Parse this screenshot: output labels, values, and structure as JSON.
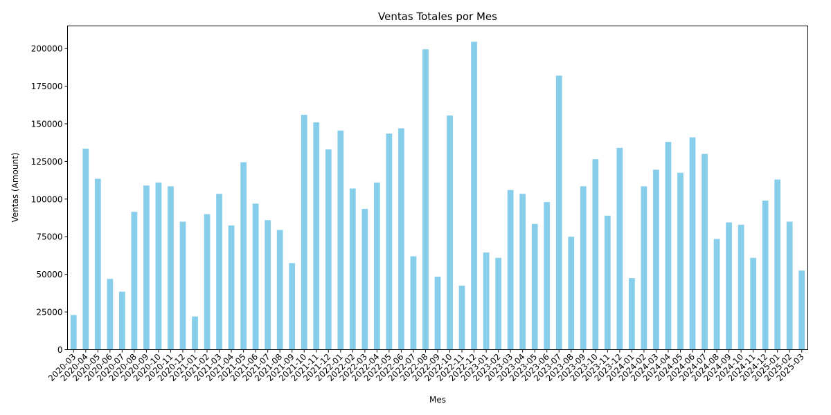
{
  "chart_data": {
    "type": "bar",
    "title": "Ventas Totales por Mes",
    "xlabel": "Mes",
    "ylabel": "Ventas (Amount)",
    "ylim": [
      0,
      215000
    ],
    "yticks": [
      0,
      25000,
      50000,
      75000,
      100000,
      125000,
      150000,
      175000,
      200000
    ],
    "bar_color": "#87ceeb",
    "grid": false,
    "legend": "none",
    "categories": [
      "2020-03",
      "2020-04",
      "2020-05",
      "2020-06",
      "2020-07",
      "2020-08",
      "2020-09",
      "2020-10",
      "2020-11",
      "2020-12",
      "2021-01",
      "2021-02",
      "2021-03",
      "2021-04",
      "2021-05",
      "2021-06",
      "2021-07",
      "2021-08",
      "2021-09",
      "2021-10",
      "2021-11",
      "2021-12",
      "2022-01",
      "2022-02",
      "2022-03",
      "2022-04",
      "2022-05",
      "2022-06",
      "2022-07",
      "2022-08",
      "2022-09",
      "2022-10",
      "2022-11",
      "2022-12",
      "2023-01",
      "2023-02",
      "2023-03",
      "2023-04",
      "2023-05",
      "2023-06",
      "2023-07",
      "2023-08",
      "2023-09",
      "2023-10",
      "2023-11",
      "2023-12",
      "2024-01",
      "2024-02",
      "2024-03",
      "2024-04",
      "2024-05",
      "2024-06",
      "2024-07",
      "2024-08",
      "2024-09",
      "2024-10",
      "2024-11",
      "2024-12",
      "2025-01",
      "2025-02",
      "2025-03"
    ],
    "values": [
      23000,
      133500,
      113500,
      47000,
      38500,
      91500,
      109000,
      111000,
      108500,
      85000,
      22000,
      90000,
      103500,
      82500,
      124500,
      97000,
      86000,
      79500,
      57500,
      156000,
      151000,
      133000,
      145500,
      107000,
      93500,
      111000,
      143500,
      147000,
      62000,
      199500,
      48500,
      155500,
      42500,
      204500,
      64500,
      61000,
      106000,
      103500,
      83500,
      98000,
      182000,
      75000,
      108500,
      126500,
      89000,
      134000,
      47500,
      108500,
      119500,
      138000,
      117500,
      141000,
      130000,
      73500,
      84500,
      83000,
      61000,
      99000,
      113000,
      85000,
      52500
    ]
  }
}
